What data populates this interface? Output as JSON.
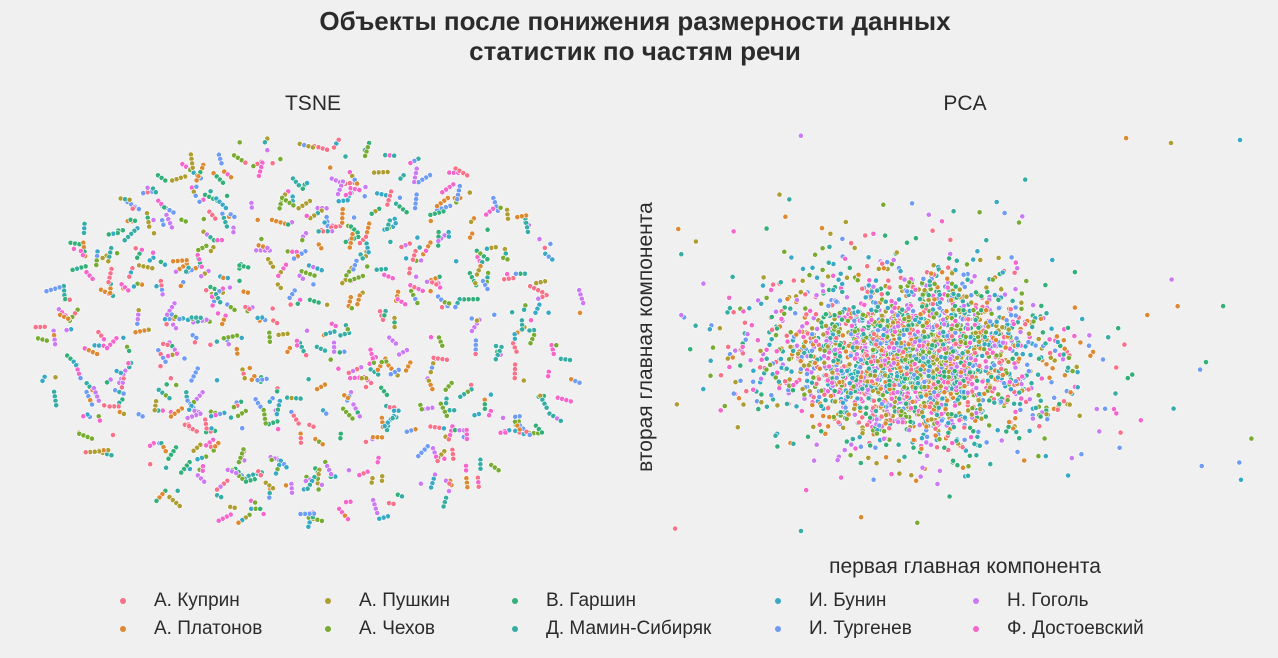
{
  "title": {
    "line1": "Объекты после понижения размерности данных",
    "line2": "статистик по частям речи"
  },
  "chart_data": [
    {
      "type": "scatter",
      "title": "TSNE",
      "xlabel": "",
      "ylabel": "",
      "axes_visible": false,
      "grid": false,
      "approx_distribution": {
        "shape": "ellipse",
        "center": [
          0,
          0
        ],
        "x_half_range": 1.0,
        "y_half_range": 1.0,
        "points": 1500,
        "pattern": "short chains of points"
      },
      "series_ref": "legend.items"
    },
    {
      "type": "scatter",
      "title": "PCA",
      "xlabel": "первая главная компонента",
      "ylabel": "вторая главная компонента",
      "axes_visible": false,
      "grid": false,
      "approx_distribution": {
        "shape": "dense gaussian blob",
        "center": [
          0,
          0
        ],
        "outliers": true,
        "points": 2600
      },
      "series_ref": "legend.items"
    }
  ],
  "legend": {
    "placement": "bottom",
    "columns": 5,
    "items": [
      {
        "name": "А. Куприн",
        "color": "#f77189"
      },
      {
        "name": "А. Платонов",
        "color": "#dc8932"
      },
      {
        "name": "А. Пушкин",
        "color": "#ae9d31"
      },
      {
        "name": "А. Чехов",
        "color": "#77ab31"
      },
      {
        "name": "В. Гаршин",
        "color": "#33b07a"
      },
      {
        "name": "Д. Мамин-Сибиряк",
        "color": "#36ada4"
      },
      {
        "name": "И. Бунин",
        "color": "#38a9c5"
      },
      {
        "name": "И. Тургенев",
        "color": "#6e9bf4"
      },
      {
        "name": "Н. Гоголь",
        "color": "#cc7af4"
      },
      {
        "name": "Ф. Достоевский",
        "color": "#f565cc"
      }
    ]
  }
}
